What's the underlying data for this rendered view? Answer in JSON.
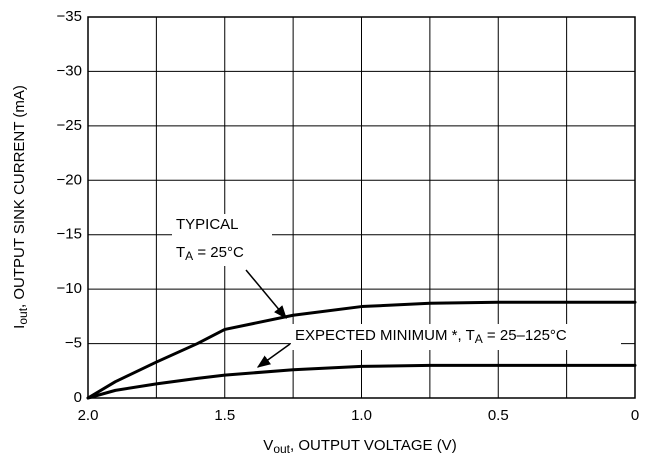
{
  "chart_data": {
    "type": "line",
    "x_label": [
      "V",
      "out",
      ", OUTPUT VOLTAGE (V)"
    ],
    "y_label": [
      "I",
      "out",
      ", OUTPUT SINK CURRENT (mA)"
    ],
    "x": [
      2.0,
      1.9,
      1.75,
      1.6,
      1.5,
      1.25,
      1.0,
      0.75,
      0.5,
      0
    ],
    "series": [
      {
        "color": "#000000",
        "values": [
          0,
          -1.5,
          -3.3,
          -5.0,
          -6.3,
          -7.6,
          -8.4,
          -8.7,
          -8.8,
          -8.8
        ]
      },
      {
        "color": "#000000",
        "values": [
          0,
          -0.7,
          -1.3,
          -1.8,
          -2.1,
          -2.6,
          -2.9,
          -3.0,
          -3.0,
          -3.0
        ]
      }
    ],
    "annotations": {
      "typical": {
        "line1": "TYPICAL",
        "line2": [
          "T",
          "A",
          " = 25°C"
        ]
      },
      "minimum": [
        "EXPECTED MINIMUM *, T",
        "A",
        " = 25–125°C"
      ]
    },
    "xlim": [
      2.0,
      0
    ],
    "xticks": [
      {
        "value": 2,
        "label": "2.0"
      },
      1.5,
      {
        "value": 1,
        "label": "1.0"
      },
      0.5,
      0
    ],
    "x_minor_grid": [
      1.75,
      1.25,
      0.75,
      0.25
    ],
    "ylim": [
      0,
      -35
    ],
    "yticks": [
      {
        "value": -35,
        "label": "−35"
      },
      {
        "value": -30,
        "label": "−30"
      },
      {
        "value": -25,
        "label": "−25"
      },
      {
        "value": -20,
        "label": "−20"
      },
      {
        "value": -15,
        "label": "−15"
      },
      {
        "value": -10,
        "label": "−10"
      },
      {
        "value": -5,
        "label": "−5"
      },
      0
    ],
    "grid": true
  }
}
